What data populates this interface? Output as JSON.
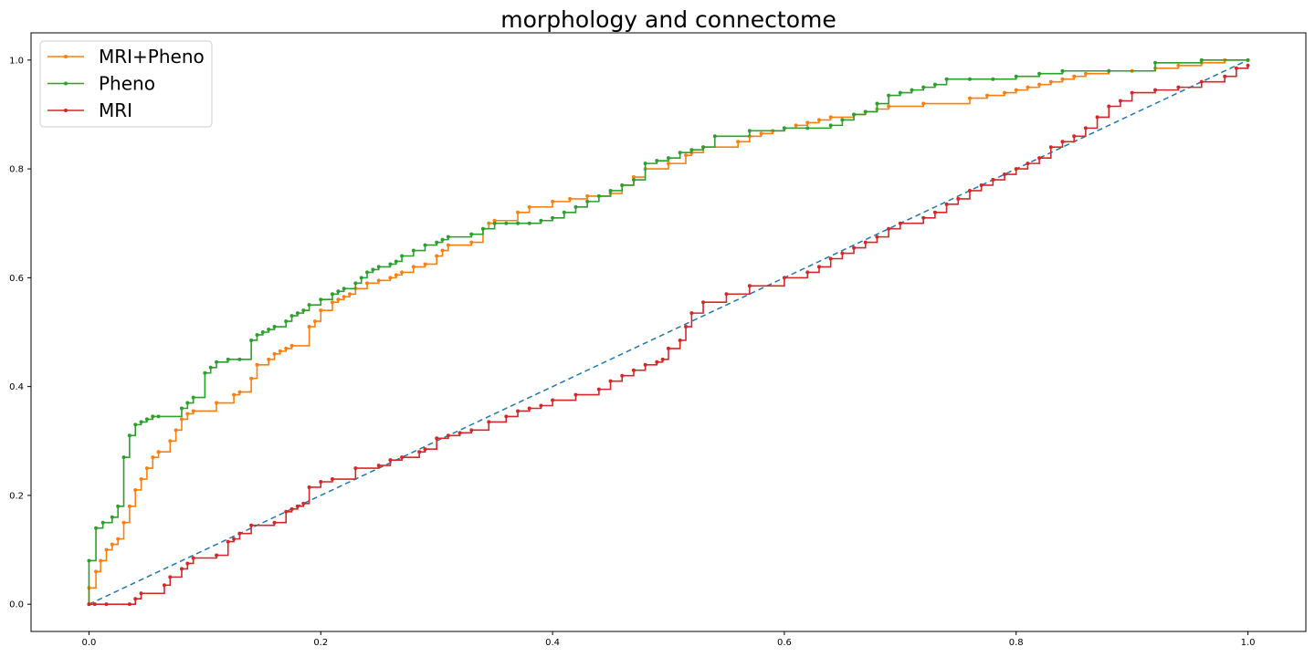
{
  "chart_data": {
    "type": "line",
    "title": "morphology and connectome",
    "xlabel": "",
    "ylabel": "",
    "xlim": [
      -0.05,
      1.05
    ],
    "ylim": [
      -0.05,
      1.05
    ],
    "xticks": [
      "0.0",
      "0.2",
      "0.4",
      "0.6",
      "0.8",
      "1.0"
    ],
    "yticks": [
      "0.0",
      "0.2",
      "0.4",
      "0.6",
      "0.8",
      "1.0"
    ],
    "grid": false,
    "legend_position": "top-left",
    "diagonal": {
      "style": "dashed",
      "color": "#1f77b4",
      "from": [
        0,
        0
      ],
      "to": [
        1,
        1
      ]
    },
    "series": [
      {
        "name": "MRI+Pheno",
        "color": "#ff7f0e",
        "x": [
          0.0,
          0.0,
          0.006,
          0.01,
          0.015,
          0.02,
          0.025,
          0.03,
          0.035,
          0.04,
          0.045,
          0.05,
          0.055,
          0.06,
          0.07,
          0.075,
          0.08,
          0.085,
          0.09,
          0.11,
          0.125,
          0.13,
          0.14,
          0.145,
          0.155,
          0.16,
          0.165,
          0.17,
          0.175,
          0.19,
          0.195,
          0.2,
          0.21,
          0.215,
          0.22,
          0.225,
          0.23,
          0.24,
          0.25,
          0.26,
          0.265,
          0.27,
          0.28,
          0.29,
          0.3,
          0.305,
          0.31,
          0.33,
          0.34,
          0.345,
          0.35,
          0.37,
          0.38,
          0.4,
          0.415,
          0.43,
          0.45,
          0.46,
          0.47,
          0.48,
          0.5,
          0.515,
          0.52,
          0.53,
          0.56,
          0.57,
          0.58,
          0.59,
          0.6,
          0.61,
          0.62,
          0.63,
          0.64,
          0.66,
          0.67,
          0.68,
          0.69,
          0.72,
          0.76,
          0.775,
          0.79,
          0.8,
          0.81,
          0.82,
          0.83,
          0.84,
          0.85,
          0.86,
          0.88,
          0.9,
          0.92,
          0.94,
          0.96,
          0.98,
          1.0
        ],
        "y": [
          0.0,
          0.03,
          0.06,
          0.08,
          0.1,
          0.11,
          0.12,
          0.15,
          0.18,
          0.21,
          0.23,
          0.25,
          0.27,
          0.28,
          0.3,
          0.32,
          0.34,
          0.35,
          0.355,
          0.37,
          0.385,
          0.39,
          0.415,
          0.44,
          0.45,
          0.46,
          0.465,
          0.47,
          0.475,
          0.51,
          0.52,
          0.54,
          0.555,
          0.56,
          0.565,
          0.57,
          0.58,
          0.59,
          0.595,
          0.6,
          0.605,
          0.61,
          0.62,
          0.625,
          0.64,
          0.65,
          0.66,
          0.665,
          0.69,
          0.7,
          0.705,
          0.72,
          0.73,
          0.74,
          0.745,
          0.75,
          0.755,
          0.77,
          0.785,
          0.8,
          0.81,
          0.825,
          0.83,
          0.84,
          0.85,
          0.86,
          0.865,
          0.87,
          0.875,
          0.88,
          0.885,
          0.89,
          0.895,
          0.9,
          0.905,
          0.91,
          0.915,
          0.92,
          0.93,
          0.935,
          0.94,
          0.945,
          0.95,
          0.955,
          0.96,
          0.965,
          0.97,
          0.975,
          0.98,
          0.98,
          0.985,
          0.99,
          0.995,
          1.0,
          1.0
        ]
      },
      {
        "name": "Pheno",
        "color": "#2ca02c",
        "x": [
          0.0,
          0.0,
          0.006,
          0.012,
          0.02,
          0.025,
          0.03,
          0.035,
          0.04,
          0.045,
          0.05,
          0.055,
          0.06,
          0.08,
          0.085,
          0.09,
          0.1,
          0.105,
          0.11,
          0.12,
          0.13,
          0.14,
          0.145,
          0.15,
          0.155,
          0.16,
          0.17,
          0.175,
          0.18,
          0.185,
          0.19,
          0.2,
          0.21,
          0.215,
          0.22,
          0.23,
          0.235,
          0.24,
          0.245,
          0.25,
          0.26,
          0.265,
          0.27,
          0.28,
          0.29,
          0.3,
          0.305,
          0.31,
          0.33,
          0.34,
          0.35,
          0.36,
          0.37,
          0.38,
          0.39,
          0.4,
          0.41,
          0.42,
          0.43,
          0.44,
          0.45,
          0.46,
          0.47,
          0.48,
          0.49,
          0.5,
          0.51,
          0.52,
          0.53,
          0.54,
          0.57,
          0.6,
          0.62,
          0.64,
          0.65,
          0.66,
          0.67,
          0.68,
          0.69,
          0.7,
          0.71,
          0.72,
          0.73,
          0.74,
          0.76,
          0.78,
          0.8,
          0.82,
          0.84,
          0.88,
          0.92,
          0.96,
          1.0
        ],
        "y": [
          0.0,
          0.08,
          0.14,
          0.15,
          0.16,
          0.18,
          0.27,
          0.31,
          0.33,
          0.335,
          0.34,
          0.345,
          0.345,
          0.36,
          0.37,
          0.38,
          0.425,
          0.435,
          0.445,
          0.45,
          0.45,
          0.485,
          0.495,
          0.5,
          0.505,
          0.51,
          0.52,
          0.53,
          0.535,
          0.54,
          0.55,
          0.56,
          0.57,
          0.575,
          0.58,
          0.59,
          0.6,
          0.61,
          0.615,
          0.62,
          0.625,
          0.63,
          0.64,
          0.65,
          0.66,
          0.665,
          0.67,
          0.675,
          0.68,
          0.69,
          0.7,
          0.7,
          0.7,
          0.7,
          0.705,
          0.71,
          0.72,
          0.73,
          0.74,
          0.75,
          0.76,
          0.77,
          0.78,
          0.81,
          0.815,
          0.82,
          0.83,
          0.835,
          0.84,
          0.86,
          0.87,
          0.875,
          0.875,
          0.88,
          0.89,
          0.9,
          0.905,
          0.92,
          0.935,
          0.94,
          0.945,
          0.95,
          0.955,
          0.965,
          0.965,
          0.965,
          0.97,
          0.975,
          0.98,
          0.98,
          0.995,
          1.0,
          1.0
        ]
      },
      {
        "name": "MRI",
        "color": "#d62728",
        "x": [
          0.0,
          0.005,
          0.015,
          0.035,
          0.04,
          0.045,
          0.065,
          0.07,
          0.08,
          0.085,
          0.09,
          0.11,
          0.12,
          0.125,
          0.13,
          0.14,
          0.16,
          0.17,
          0.175,
          0.18,
          0.185,
          0.19,
          0.2,
          0.21,
          0.23,
          0.25,
          0.26,
          0.27,
          0.285,
          0.29,
          0.3,
          0.31,
          0.32,
          0.33,
          0.345,
          0.36,
          0.37,
          0.38,
          0.39,
          0.4,
          0.42,
          0.44,
          0.45,
          0.46,
          0.47,
          0.48,
          0.49,
          0.495,
          0.5,
          0.51,
          0.515,
          0.52,
          0.53,
          0.55,
          0.57,
          0.6,
          0.62,
          0.63,
          0.64,
          0.65,
          0.66,
          0.67,
          0.68,
          0.69,
          0.7,
          0.72,
          0.73,
          0.74,
          0.75,
          0.76,
          0.77,
          0.78,
          0.79,
          0.8,
          0.81,
          0.82,
          0.83,
          0.84,
          0.85,
          0.86,
          0.87,
          0.88,
          0.89,
          0.9,
          0.92,
          0.94,
          0.96,
          0.98,
          0.99,
          1.0
        ],
        "y": [
          0.0,
          0.0,
          0.0,
          0.0,
          0.01,
          0.02,
          0.035,
          0.05,
          0.065,
          0.075,
          0.085,
          0.09,
          0.115,
          0.12,
          0.13,
          0.145,
          0.15,
          0.17,
          0.175,
          0.18,
          0.185,
          0.215,
          0.225,
          0.23,
          0.25,
          0.255,
          0.265,
          0.27,
          0.28,
          0.285,
          0.305,
          0.31,
          0.315,
          0.32,
          0.335,
          0.345,
          0.355,
          0.36,
          0.365,
          0.375,
          0.385,
          0.395,
          0.41,
          0.42,
          0.43,
          0.44,
          0.445,
          0.45,
          0.47,
          0.485,
          0.51,
          0.535,
          0.555,
          0.57,
          0.585,
          0.6,
          0.61,
          0.62,
          0.635,
          0.645,
          0.655,
          0.665,
          0.675,
          0.69,
          0.7,
          0.71,
          0.72,
          0.735,
          0.745,
          0.76,
          0.77,
          0.78,
          0.79,
          0.8,
          0.81,
          0.82,
          0.84,
          0.85,
          0.86,
          0.875,
          0.895,
          0.915,
          0.925,
          0.94,
          0.945,
          0.95,
          0.96,
          0.97,
          0.985,
          0.99
        ]
      }
    ]
  }
}
